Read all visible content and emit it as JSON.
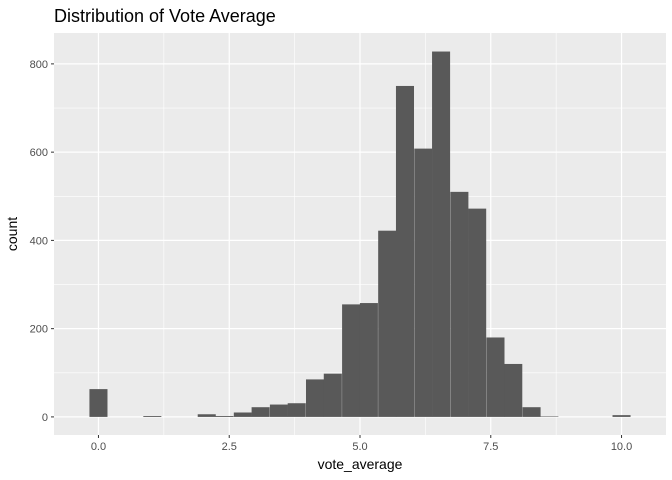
{
  "chart_data": {
    "type": "bar",
    "title": "Distribution of Vote Average",
    "xlabel": "vote_average",
    "ylabel": "count",
    "x_ticks": [
      0.0,
      2.5,
      5.0,
      7.5,
      10.0
    ],
    "x_tick_labels": [
      "0.0",
      "2.5",
      "5.0",
      "7.5",
      "10.0"
    ],
    "y_ticks": [
      0,
      200,
      400,
      600,
      800
    ],
    "y_tick_labels": [
      "0",
      "200",
      "400",
      "600",
      "800"
    ],
    "xlim": [
      -0.85,
      10.85
    ],
    "ylim": [
      -41,
      870
    ],
    "grid": true,
    "bin_width": 0.345,
    "bins": [
      {
        "x": 0.0,
        "count": 63
      },
      {
        "x": 1.03,
        "count": 2
      },
      {
        "x": 2.07,
        "count": 6
      },
      {
        "x": 2.41,
        "count": 2
      },
      {
        "x": 2.76,
        "count": 10
      },
      {
        "x": 3.1,
        "count": 22
      },
      {
        "x": 3.45,
        "count": 28
      },
      {
        "x": 3.79,
        "count": 31
      },
      {
        "x": 4.14,
        "count": 85
      },
      {
        "x": 4.48,
        "count": 98
      },
      {
        "x": 4.83,
        "count": 255
      },
      {
        "x": 5.17,
        "count": 258
      },
      {
        "x": 5.52,
        "count": 422
      },
      {
        "x": 5.86,
        "count": 750
      },
      {
        "x": 6.21,
        "count": 608
      },
      {
        "x": 6.55,
        "count": 828
      },
      {
        "x": 6.9,
        "count": 510
      },
      {
        "x": 7.24,
        "count": 472
      },
      {
        "x": 7.59,
        "count": 180
      },
      {
        "x": 7.93,
        "count": 120
      },
      {
        "x": 8.28,
        "count": 22
      },
      {
        "x": 8.62,
        "count": 1
      },
      {
        "x": 10.0,
        "count": 4
      }
    ],
    "colors": {
      "panel": "#ebebeb",
      "grid_major": "#ffffff",
      "bar": "#595959",
      "tick_text": "#4d4d4d",
      "tick_line": "#333333"
    }
  }
}
